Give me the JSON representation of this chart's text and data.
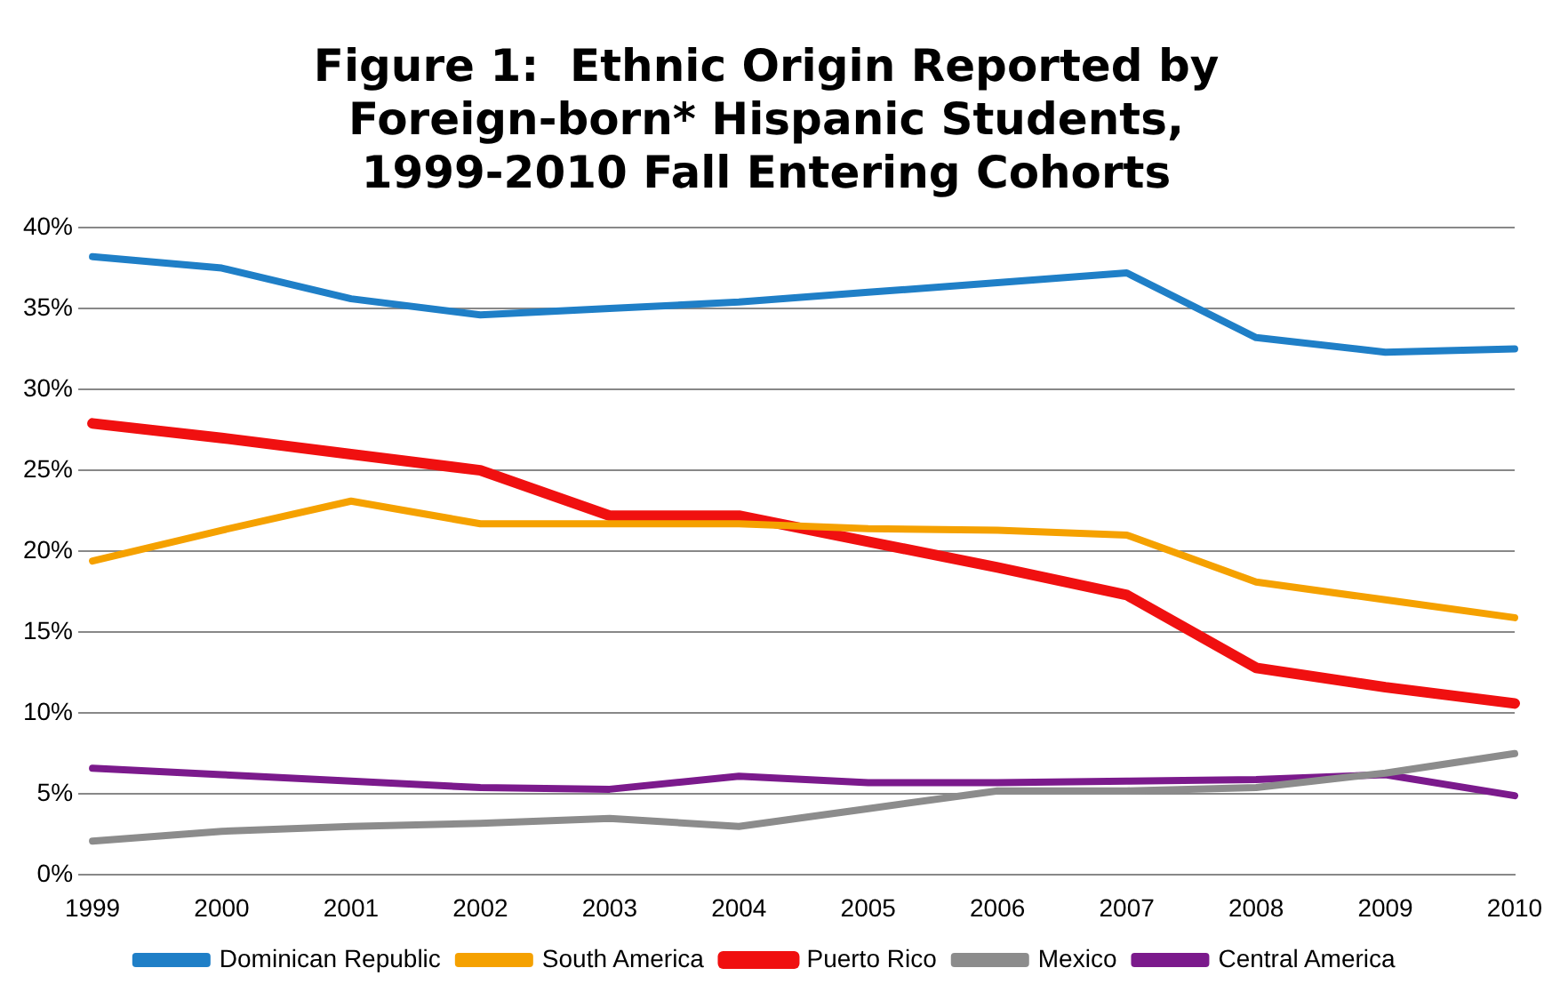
{
  "chart_data": {
    "type": "line",
    "title": "Figure 1:  Ethnic Origin Reported by\nForeign-born* Hispanic Students,\n1999-2010 Fall Entering Cohorts",
    "categories": [
      "1999",
      "2000",
      "2001",
      "2002",
      "2003",
      "2004",
      "2005",
      "2006",
      "2007",
      "2008",
      "2009",
      "2010"
    ],
    "series": [
      {
        "name": "Dominican Republic",
        "color": "#1f7fc7",
        "values": [
          38.2,
          37.5,
          35.6,
          34.6,
          35.0,
          35.4,
          36.0,
          36.6,
          37.2,
          33.2,
          32.3,
          32.5
        ]
      },
      {
        "name": "South America",
        "color": "#f5a100",
        "values": [
          19.4,
          21.3,
          23.1,
          21.7,
          21.7,
          21.7,
          21.4,
          21.3,
          21.0,
          18.1,
          17.0,
          15.9
        ]
      },
      {
        "name": "Puerto Rico",
        "color": "#f01010",
        "values": [
          27.9,
          27.0,
          26.0,
          25.0,
          22.2,
          22.2,
          20.6,
          19.0,
          17.3,
          12.8,
          11.6,
          10.6
        ]
      },
      {
        "name": "Mexico",
        "color": "#8c8c8c",
        "values": [
          2.1,
          2.7,
          3.0,
          3.2,
          3.5,
          3.0,
          4.1,
          5.2,
          5.2,
          5.4,
          6.3,
          7.5
        ]
      },
      {
        "name": "Central America",
        "color": "#7b1a8c",
        "values": [
          6.6,
          6.2,
          5.8,
          5.4,
          5.3,
          6.1,
          5.7,
          5.7,
          5.8,
          5.9,
          6.2,
          4.9
        ]
      }
    ],
    "ylim": [
      0,
      40
    ],
    "yticks": [
      {
        "value": 0,
        "label": "0%"
      },
      {
        "value": 5,
        "label": "5%"
      },
      {
        "value": 10,
        "label": "10%"
      },
      {
        "value": 15,
        "label": "15%"
      },
      {
        "value": 20,
        "label": "20%"
      },
      {
        "value": 25,
        "label": "25%"
      },
      {
        "value": 30,
        "label": "30%"
      },
      {
        "value": 35,
        "label": "35%"
      },
      {
        "value": 40,
        "label": "40%"
      }
    ],
    "grid": "y",
    "legend": "bottom",
    "marker": "none",
    "line_style": "solid"
  }
}
